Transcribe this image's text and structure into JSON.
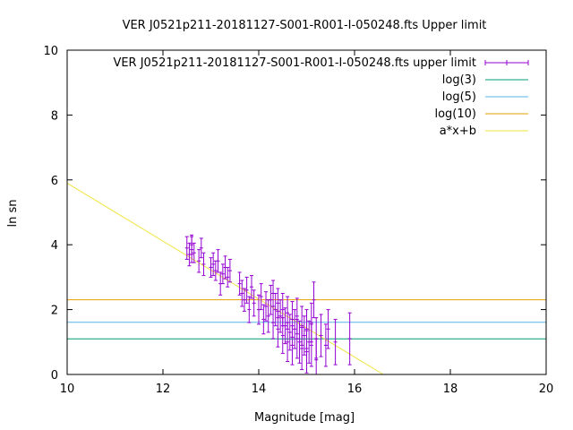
{
  "chart_data": {
    "type": "scatter",
    "title": "VER J0521p211-20181127-S001-R001-I-050248.fts Upper limit",
    "xlabel": "Magnitude [mag]",
    "ylabel": "ln sn",
    "xlim": [
      10,
      20
    ],
    "ylim": [
      0,
      10
    ],
    "x_ticks": [
      "10",
      "12",
      "14",
      "16",
      "18",
      "20"
    ],
    "y_ticks": [
      "0",
      "2",
      "4",
      "6",
      "8",
      "10"
    ],
    "grid": false,
    "legend_position": "top-right",
    "series": [
      {
        "name": "VER J0521p211-20181127-S001-R001-I-050248.fts upper limit",
        "color": "#9400d3",
        "points": [
          {
            "x": 12.5,
            "y": 3.9,
            "err": 0.35
          },
          {
            "x": 12.55,
            "y": 3.7,
            "err": 0.35
          },
          {
            "x": 12.6,
            "y": 3.85,
            "err": 0.4
          },
          {
            "x": 12.65,
            "y": 3.75,
            "err": 0.3
          },
          {
            "x": 12.6,
            "y": 4.0,
            "err": 0.3
          },
          {
            "x": 12.75,
            "y": 3.5,
            "err": 0.35
          },
          {
            "x": 12.8,
            "y": 3.9,
            "err": 0.3
          },
          {
            "x": 12.85,
            "y": 3.4,
            "err": 0.35
          },
          {
            "x": 13.0,
            "y": 3.3,
            "err": 0.3
          },
          {
            "x": 13.05,
            "y": 3.4,
            "err": 0.35
          },
          {
            "x": 13.1,
            "y": 3.2,
            "err": 0.3
          },
          {
            "x": 13.15,
            "y": 3.5,
            "err": 0.35
          },
          {
            "x": 13.2,
            "y": 2.8,
            "err": 0.35
          },
          {
            "x": 13.25,
            "y": 3.1,
            "err": 0.3
          },
          {
            "x": 13.3,
            "y": 3.3,
            "err": 0.35
          },
          {
            "x": 13.35,
            "y": 3.0,
            "err": 0.3
          },
          {
            "x": 13.4,
            "y": 3.2,
            "err": 0.35
          },
          {
            "x": 13.6,
            "y": 2.8,
            "err": 0.35
          },
          {
            "x": 13.65,
            "y": 2.5,
            "err": 0.4
          },
          {
            "x": 13.7,
            "y": 2.3,
            "err": 0.35
          },
          {
            "x": 13.75,
            "y": 2.6,
            "err": 0.4
          },
          {
            "x": 13.8,
            "y": 2.0,
            "err": 0.4
          },
          {
            "x": 13.85,
            "y": 2.7,
            "err": 0.35
          },
          {
            "x": 13.9,
            "y": 2.2,
            "err": 0.4
          },
          {
            "x": 14.0,
            "y": 2.0,
            "err": 0.45
          },
          {
            "x": 14.05,
            "y": 2.4,
            "err": 0.4
          },
          {
            "x": 14.1,
            "y": 1.7,
            "err": 0.45
          },
          {
            "x": 14.15,
            "y": 2.1,
            "err": 0.45
          },
          {
            "x": 14.2,
            "y": 1.8,
            "err": 0.5
          },
          {
            "x": 14.25,
            "y": 2.3,
            "err": 0.45
          },
          {
            "x": 14.3,
            "y": 1.6,
            "err": 0.5
          },
          {
            "x": 14.3,
            "y": 2.5,
            "err": 0.4
          },
          {
            "x": 14.35,
            "y": 2.0,
            "err": 0.5
          },
          {
            "x": 14.4,
            "y": 1.4,
            "err": 0.55
          },
          {
            "x": 14.4,
            "y": 2.2,
            "err": 0.45
          },
          {
            "x": 14.45,
            "y": 1.8,
            "err": 0.5
          },
          {
            "x": 14.5,
            "y": 1.2,
            "err": 0.55
          },
          {
            "x": 14.5,
            "y": 2.0,
            "err": 0.5
          },
          {
            "x": 14.55,
            "y": 1.5,
            "err": 0.55
          },
          {
            "x": 14.6,
            "y": 1.0,
            "err": 0.6
          },
          {
            "x": 14.6,
            "y": 1.9,
            "err": 0.5
          },
          {
            "x": 14.65,
            "y": 1.3,
            "err": 0.55
          },
          {
            "x": 14.7,
            "y": 1.7,
            "err": 0.55
          },
          {
            "x": 14.7,
            "y": 0.9,
            "err": 0.6
          },
          {
            "x": 14.75,
            "y": 1.4,
            "err": 0.6
          },
          {
            "x": 14.8,
            "y": 1.1,
            "err": 0.6
          },
          {
            "x": 14.8,
            "y": 1.8,
            "err": 0.55
          },
          {
            "x": 14.85,
            "y": 1.0,
            "err": 0.65
          },
          {
            "x": 14.9,
            "y": 1.5,
            "err": 0.6
          },
          {
            "x": 14.9,
            "y": 0.8,
            "err": 0.65
          },
          {
            "x": 14.95,
            "y": 1.2,
            "err": 0.6
          },
          {
            "x": 15.0,
            "y": 1.4,
            "err": 0.6
          },
          {
            "x": 15.0,
            "y": 0.7,
            "err": 0.65
          },
          {
            "x": 15.05,
            "y": 1.0,
            "err": 0.65
          },
          {
            "x": 15.1,
            "y": 1.6,
            "err": 0.6
          },
          {
            "x": 15.1,
            "y": 0.9,
            "err": 0.65
          },
          {
            "x": 15.15,
            "y": 2.3,
            "err": 0.55
          },
          {
            "x": 15.2,
            "y": 1.1,
            "err": 0.65
          },
          {
            "x": 15.2,
            "y": 0.5,
            "err": 0.6
          },
          {
            "x": 15.3,
            "y": 1.2,
            "err": 0.65
          },
          {
            "x": 15.4,
            "y": 0.9,
            "err": 0.65
          },
          {
            "x": 15.45,
            "y": 1.4,
            "err": 0.6
          },
          {
            "x": 15.6,
            "y": 1.0,
            "err": 0.7
          },
          {
            "x": 15.9,
            "y": 1.1,
            "err": 0.8
          }
        ]
      },
      {
        "name": "log(3)",
        "color": "#009e73",
        "type": "hline",
        "y": 1.0986
      },
      {
        "name": "log(5)",
        "color": "#56b4e9",
        "type": "hline",
        "y": 1.6094
      },
      {
        "name": "log(10)",
        "color": "#e69f00",
        "type": "hline",
        "y": 2.3026
      },
      {
        "name": "a*x+b",
        "color": "#f0e442",
        "type": "line",
        "points": [
          {
            "x": 10,
            "y": 5.9
          },
          {
            "x": 16.6,
            "y": 0.0
          }
        ]
      }
    ]
  }
}
